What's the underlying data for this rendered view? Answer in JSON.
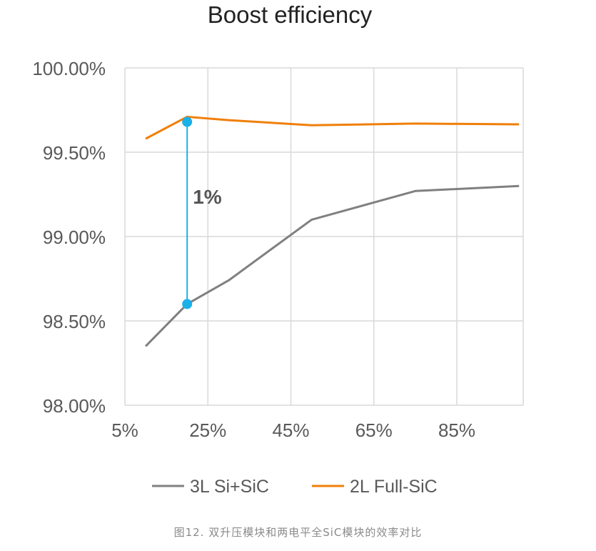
{
  "chart_data": {
    "type": "line",
    "title": "Boost efficiency",
    "xlabel": "",
    "ylabel": "",
    "xlim": [
      5,
      101
    ],
    "ylim": [
      98.0,
      100.0
    ],
    "x_ticks": [
      5,
      25,
      45,
      65,
      85
    ],
    "x_tick_labels": [
      "5%",
      "25%",
      "45%",
      "65%",
      "85%"
    ],
    "y_ticks": [
      98.0,
      98.5,
      99.0,
      99.5,
      100.0
    ],
    "y_tick_labels": [
      "98.00%",
      "98.50%",
      "99.00%",
      "99.50%",
      "100.00%"
    ],
    "grid": true,
    "legend_position": "bottom",
    "series": [
      {
        "name": "3L Si+SiC",
        "color": "#808080",
        "x": [
          10,
          20,
          30,
          50,
          75,
          100
        ],
        "y": [
          98.35,
          98.6,
          98.74,
          99.1,
          99.27,
          99.3
        ]
      },
      {
        "name": "2L Full-SiC",
        "color": "#f07f09",
        "x": [
          10,
          20,
          30,
          50,
          75,
          100
        ],
        "y": [
          99.58,
          99.71,
          99.69,
          99.66,
          99.67,
          99.665
        ]
      }
    ],
    "annotation": {
      "label": "1%",
      "x": 20,
      "y_from": 98.6,
      "y_to": 99.68,
      "color": "#1ab0e8"
    }
  },
  "caption": "图12. 双升压模块和两电平全SiC模块的效率对比"
}
